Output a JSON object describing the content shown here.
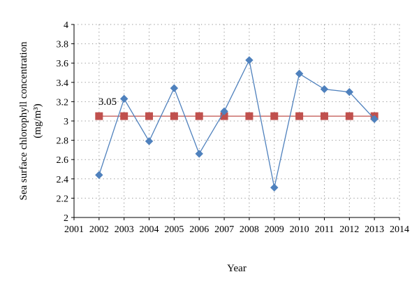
{
  "chart_data": {
    "type": "line",
    "title": "",
    "xlabel": "Year",
    "ylabel_line1": "Sea surface chlorophyll concentration",
    "ylabel_line2": "(mg/m³)",
    "xlim": [
      2001,
      2014
    ],
    "ylim": [
      2,
      4
    ],
    "x_ticks": [
      "2001",
      "2002",
      "2003",
      "2004",
      "2005",
      "2006",
      "2007",
      "2008",
      "2009",
      "2010",
      "2011",
      "2012",
      "2013",
      "2014"
    ],
    "y_ticks": [
      "2",
      "2.2",
      "2.4",
      "2.6",
      "2.8",
      "3",
      "3.2",
      "3.4",
      "3.6",
      "3.8",
      "4"
    ],
    "grid": "horizontal dotted",
    "series": [
      {
        "color": "#4F81BD",
        "marker": "diamond",
        "x": [
          2002,
          2003,
          2004,
          2005,
          2006,
          2007,
          2008,
          2009,
          2010,
          2011,
          2012,
          2013
        ],
        "values": [
          2.44,
          3.23,
          2.79,
          3.34,
          2.66,
          3.1,
          3.63,
          2.31,
          3.49,
          3.33,
          3.3,
          3.02
        ]
      },
      {
        "color": "#C0504D",
        "marker": "square",
        "x": [
          2002,
          2003,
          2004,
          2005,
          2006,
          2007,
          2008,
          2009,
          2010,
          2011,
          2012,
          2013
        ],
        "values": [
          3.05,
          3.05,
          3.05,
          3.05,
          3.05,
          3.05,
          3.05,
          3.05,
          3.05,
          3.05,
          3.05,
          3.05
        ]
      }
    ],
    "annotations": [
      {
        "text": "3.05",
        "x": 2002,
        "y": 3.05
      }
    ]
  }
}
